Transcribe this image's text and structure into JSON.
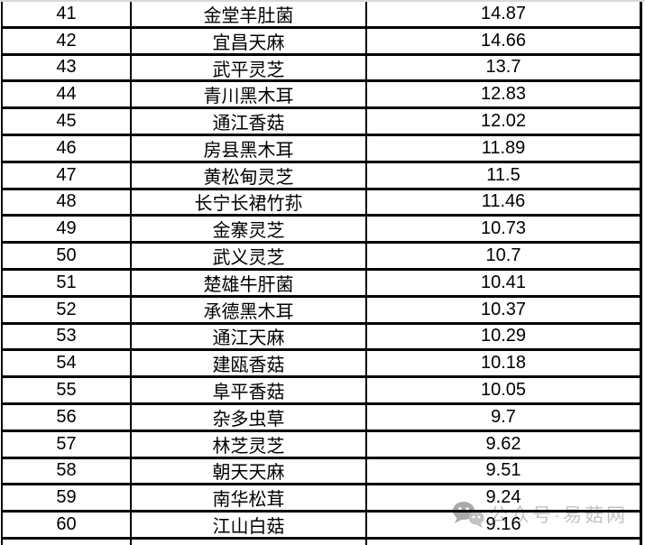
{
  "chart_data": {
    "type": "table",
    "rows": [
      [
        "41",
        "金堂羊肚菌",
        "14.87"
      ],
      [
        "42",
        "宜昌天麻",
        "14.66"
      ],
      [
        "43",
        "武平灵芝",
        "13.7"
      ],
      [
        "44",
        "青川黑木耳",
        "12.83"
      ],
      [
        "45",
        "通江香菇",
        "12.02"
      ],
      [
        "46",
        "房县黑木耳",
        "11.89"
      ],
      [
        "47",
        "黄松甸灵芝",
        "11.5"
      ],
      [
        "48",
        "长宁长裙竹荪",
        "11.46"
      ],
      [
        "49",
        "金寨灵芝",
        "10.73"
      ],
      [
        "50",
        "武义灵芝",
        "10.7"
      ],
      [
        "51",
        "楚雄牛肝菌",
        "10.41"
      ],
      [
        "52",
        "承德黑木耳",
        "10.37"
      ],
      [
        "53",
        "通江天麻",
        "10.29"
      ],
      [
        "54",
        "建瓯香菇",
        "10.18"
      ],
      [
        "55",
        "阜平香菇",
        "10.05"
      ],
      [
        "56",
        "杂多虫草",
        "9.7"
      ],
      [
        "57",
        "林芝灵芝",
        "9.62"
      ],
      [
        "58",
        "朝天天麻",
        "9.51"
      ],
      [
        "59",
        "南华松茸",
        "9.24"
      ],
      [
        "60",
        "江山白菇",
        "9.16"
      ]
    ]
  },
  "watermark": {
    "text": "公众号·易菇网",
    "icon": "wechat-icon",
    "color": "#c3c3c3"
  },
  "colors": {
    "border": "#000000",
    "background": "#ffffff",
    "text": "#000000"
  }
}
